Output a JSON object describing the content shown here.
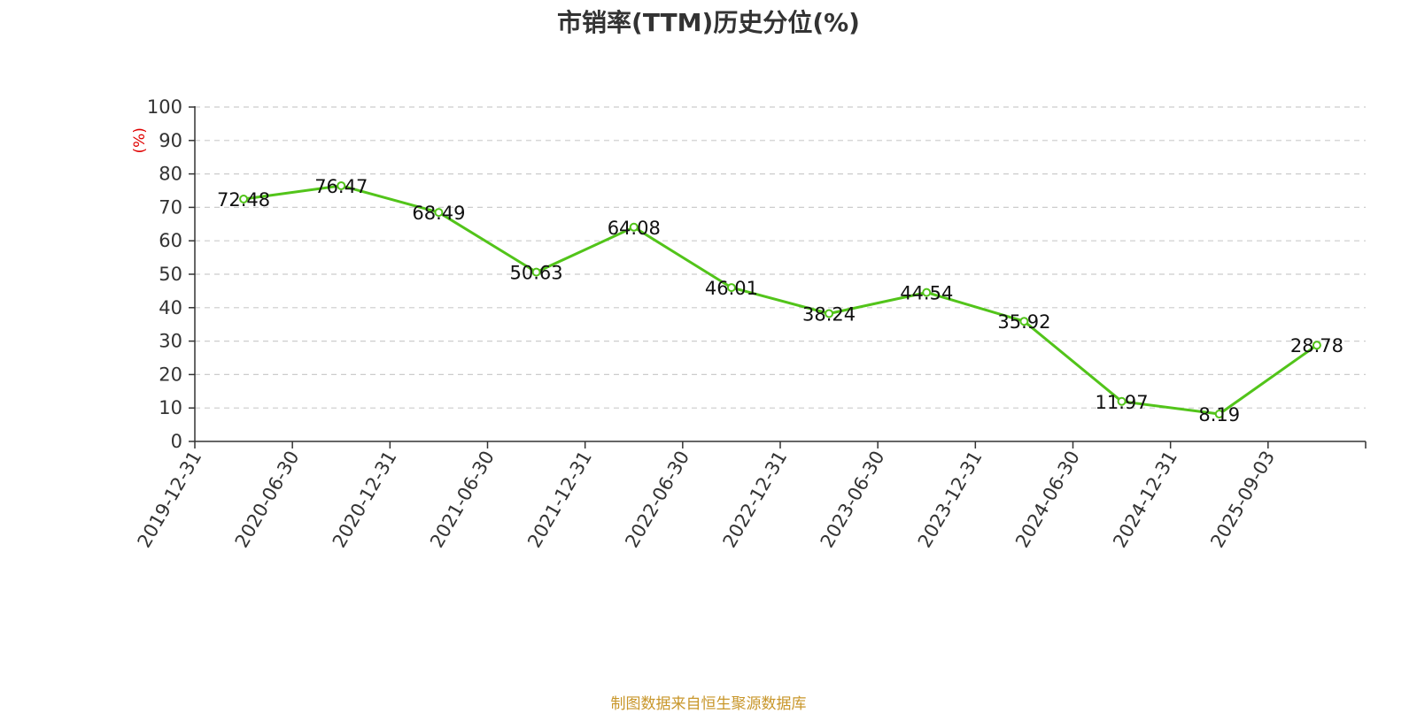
{
  "title": "市销率(TTM)历史分位(%)",
  "source_note": "制图数据来自恒生聚源数据库",
  "chart_data": {
    "type": "line",
    "title": "市销率(TTM)历史分位(%)",
    "ylabel": "(%)",
    "xlabel": "",
    "ylim": [
      0,
      100
    ],
    "yticks": [
      0,
      10,
      20,
      30,
      40,
      50,
      60,
      70,
      80,
      90,
      100
    ],
    "grid": true,
    "categories": [
      "2019-12-31",
      "2020-06-30",
      "2020-12-31",
      "2021-06-30",
      "2021-12-31",
      "2022-06-30",
      "2022-12-31",
      "2023-06-30",
      "2023-12-31",
      "2024-06-30",
      "2024-12-31",
      "2025-09-03"
    ],
    "series": [
      {
        "values": [
          72.48,
          76.47,
          68.49,
          50.63,
          64.08,
          46.01,
          38.24,
          44.54,
          35.92,
          11.97,
          8.19,
          28.78
        ],
        "labels": [
          "72.48",
          "76.47",
          "68.49",
          "50.63",
          "64.08",
          "46.01",
          "38.24",
          "44.54",
          "35.92",
          "11.97",
          "8.19",
          "28.78"
        ],
        "color": "#52c41a"
      }
    ]
  }
}
